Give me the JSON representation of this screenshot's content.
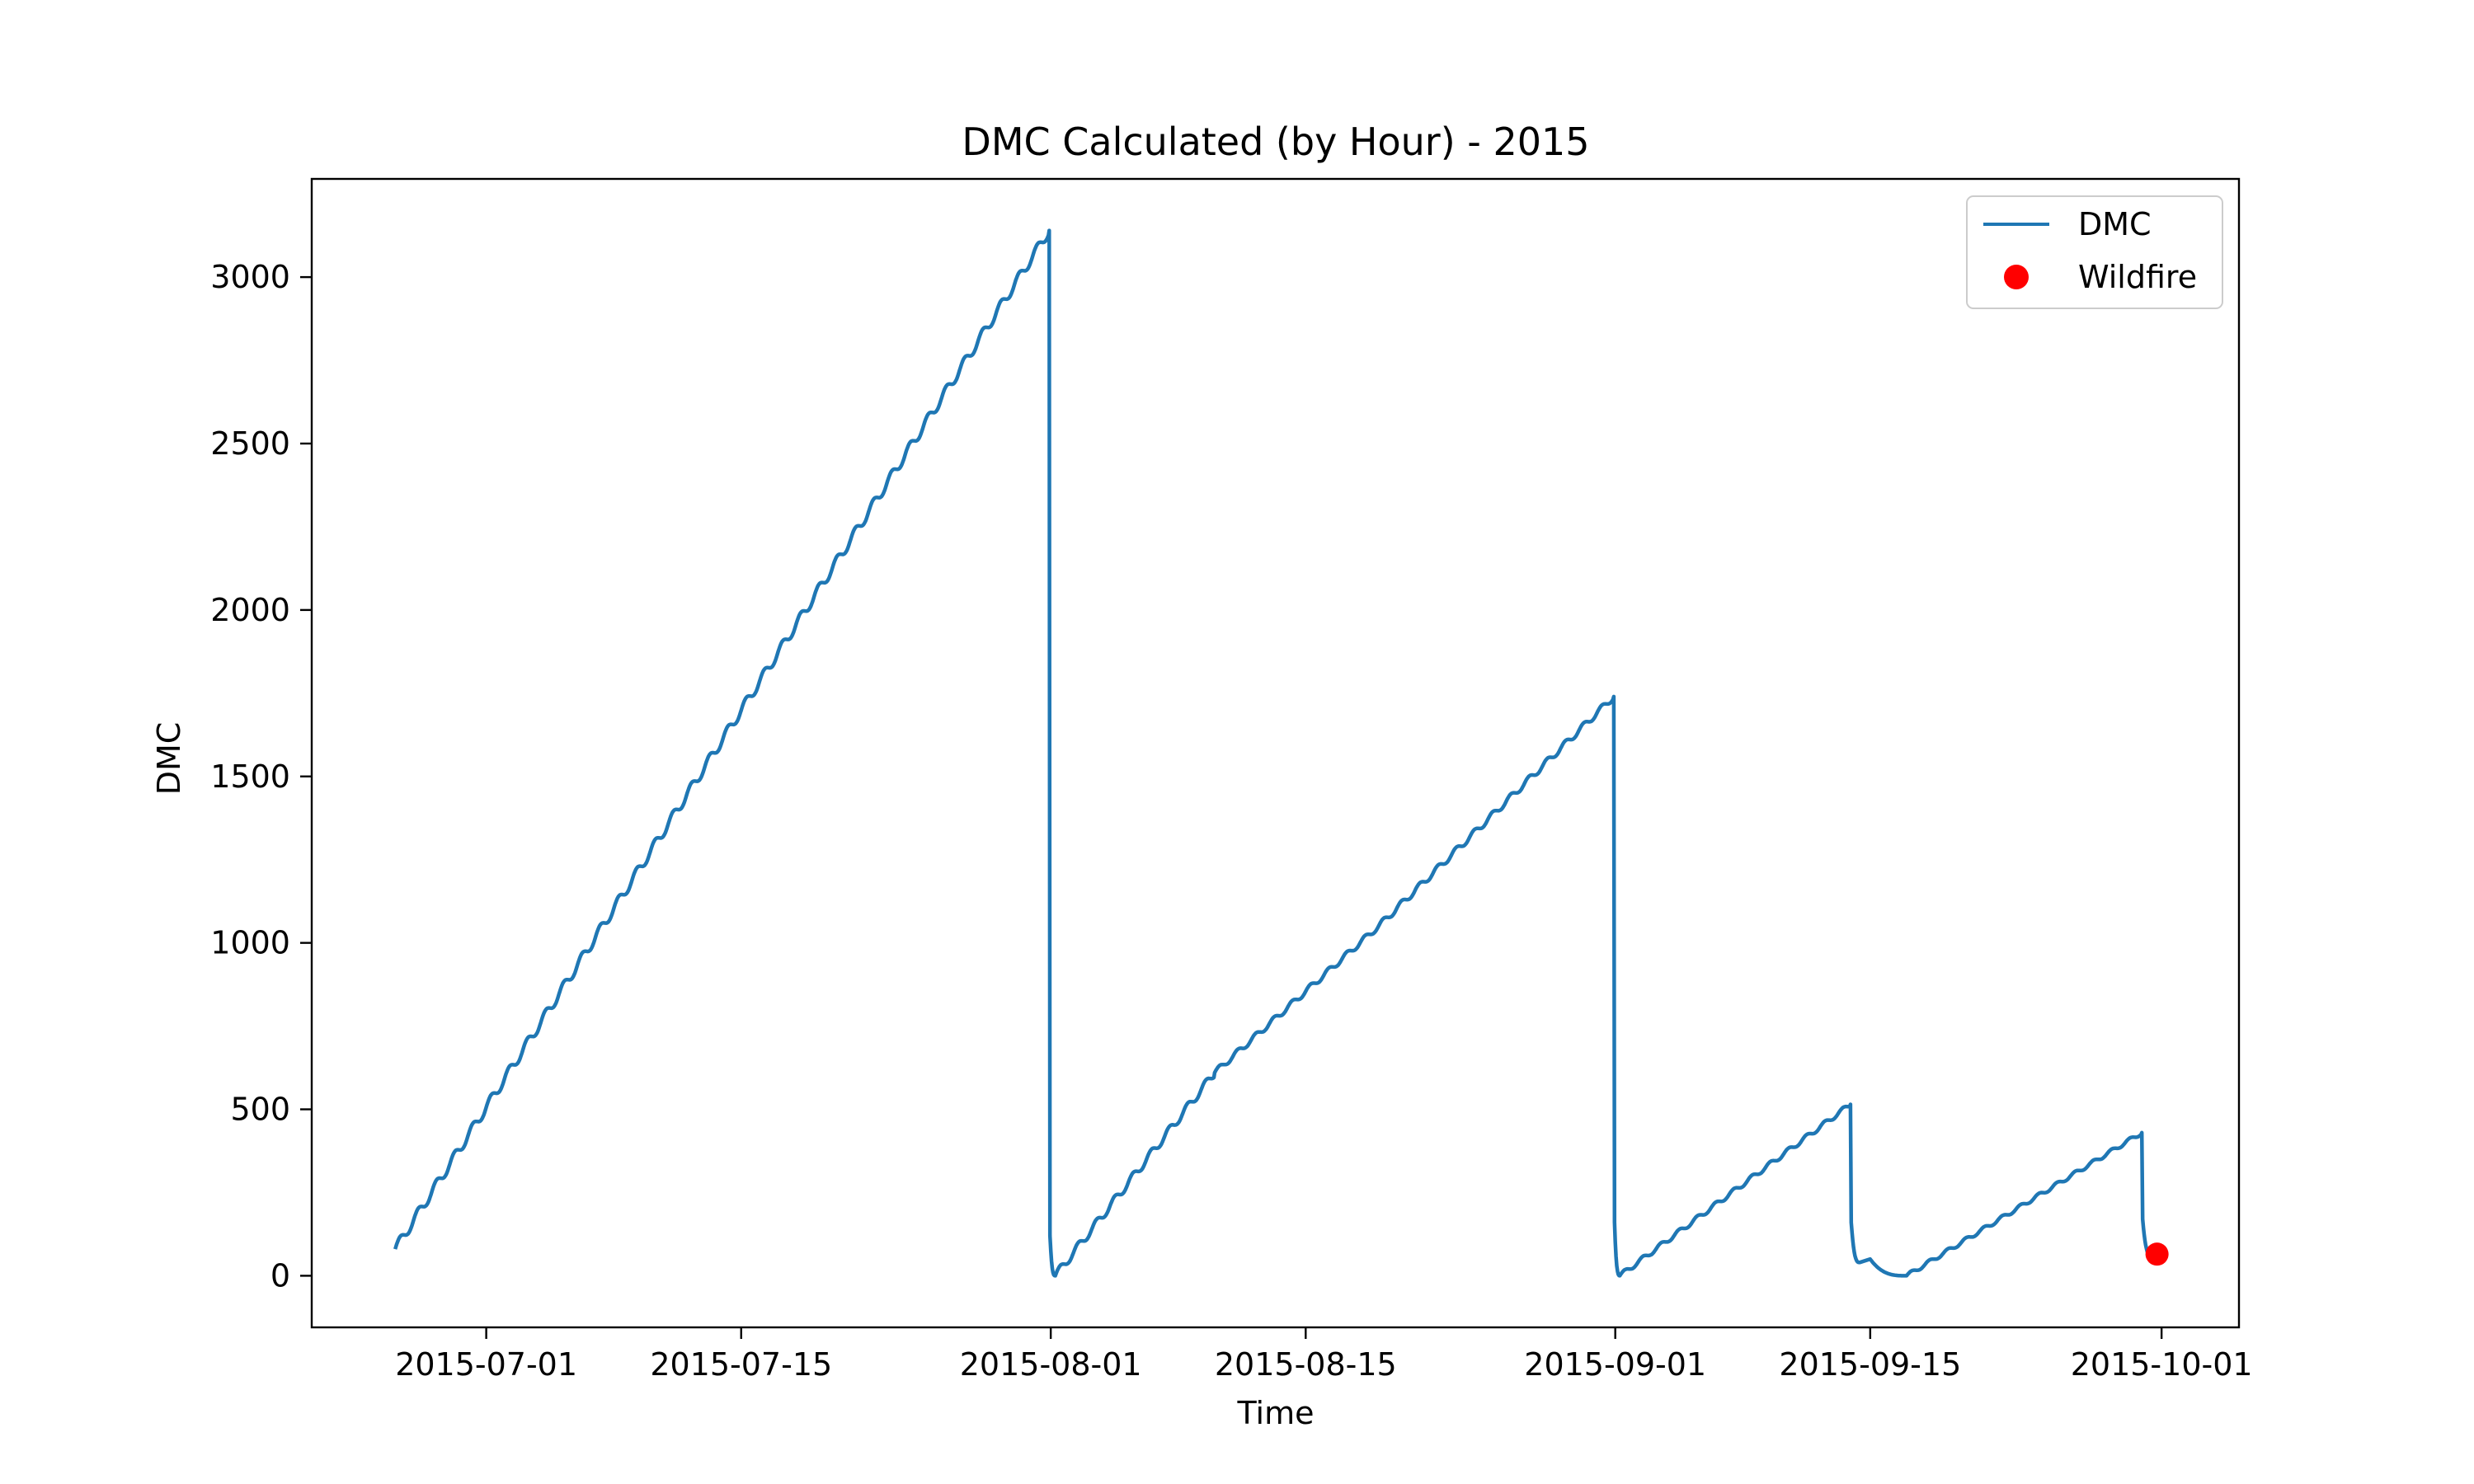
{
  "chart_data": {
    "type": "line",
    "title": "DMC Calculated (by Hour) - 2015",
    "xlabel": "Time",
    "ylabel": "DMC",
    "xlim": [
      "2015-06-21T10:00",
      "2015-10-05T06:00"
    ],
    "ylim": [
      -155,
      3295
    ],
    "x_ticks": [
      {
        "date": "2015-07-01",
        "label": "2015-07-01"
      },
      {
        "date": "2015-07-15",
        "label": "2015-07-15"
      },
      {
        "date": "2015-08-01",
        "label": "2015-08-01"
      },
      {
        "date": "2015-08-15",
        "label": "2015-08-15"
      },
      {
        "date": "2015-09-01",
        "label": "2015-09-01"
      },
      {
        "date": "2015-09-15",
        "label": "2015-09-15"
      },
      {
        "date": "2015-10-01",
        "label": "2015-10-01"
      }
    ],
    "y_ticks": [
      {
        "value": 0,
        "label": "0"
      },
      {
        "value": 500,
        "label": "500"
      },
      {
        "value": 1000,
        "label": "1000"
      },
      {
        "value": 1500,
        "label": "1500"
      },
      {
        "value": 2000,
        "label": "2000"
      },
      {
        "value": 2500,
        "label": "2500"
      },
      {
        "value": 3000,
        "label": "3000"
      }
    ],
    "legend": {
      "position": "upper-right",
      "entries": [
        {
          "name": "DMC",
          "marker": "line",
          "color": "#1f77b4"
        },
        {
          "name": "Wildfire",
          "marker": "dot",
          "color": "#ff0000"
        }
      ]
    },
    "series": [
      {
        "name": "DMC",
        "color": "#1f77b4",
        "segments": [
          {
            "start": "2015-06-26",
            "end": "2015-07-31",
            "from": 80,
            "to": 3140
          },
          {
            "start": "2015-08-01",
            "end": "2015-08-10",
            "from": 0,
            "to": 610
          },
          {
            "start": "2015-08-10",
            "end": "2015-08-19",
            "from": 610,
            "to": 1050
          },
          {
            "start": "2015-08-19",
            "end": "2015-08-31",
            "from": 1050,
            "to": 1740
          },
          {
            "start": "2015-09-01",
            "end": "2015-09-13",
            "from": 0,
            "to": 515
          },
          {
            "start": "2015-09-14",
            "end": "2015-09-17",
            "from": 50,
            "to": 0
          },
          {
            "start": "2015-09-17",
            "end": "2015-09-29",
            "from": 0,
            "to": 430
          }
        ],
        "points": [
          {
            "x": "2015-06-26T00:00",
            "y": 80
          },
          {
            "x": "2015-07-31T22:00",
            "y": 3140
          },
          {
            "x": "2015-07-31T23:00",
            "y": 120
          },
          {
            "x": "2015-08-01T06:00",
            "y": 0
          },
          {
            "x": "2015-08-10T00:00",
            "y": 610
          },
          {
            "x": "2015-08-19T00:00",
            "y": 1050
          },
          {
            "x": "2015-08-31T22:00",
            "y": 1740
          },
          {
            "x": "2015-08-31T23:00",
            "y": 160
          },
          {
            "x": "2015-09-01T06:00",
            "y": 0
          },
          {
            "x": "2015-09-13T22:00",
            "y": 515
          },
          {
            "x": "2015-09-13T23:00",
            "y": 160
          },
          {
            "x": "2015-09-14T10:00",
            "y": 40
          },
          {
            "x": "2015-09-15T00:00",
            "y": 50
          },
          {
            "x": "2015-09-17T00:00",
            "y": 0
          },
          {
            "x": "2015-09-29T22:00",
            "y": 430
          },
          {
            "x": "2015-09-29T23:00",
            "y": 170
          },
          {
            "x": "2015-09-30T12:00",
            "y": 55
          }
        ]
      },
      {
        "name": "Wildfire",
        "color": "#ff0000",
        "type": "scatter",
        "points": [
          {
            "x": "2015-09-30T18:00",
            "y": 65
          }
        ]
      }
    ]
  }
}
